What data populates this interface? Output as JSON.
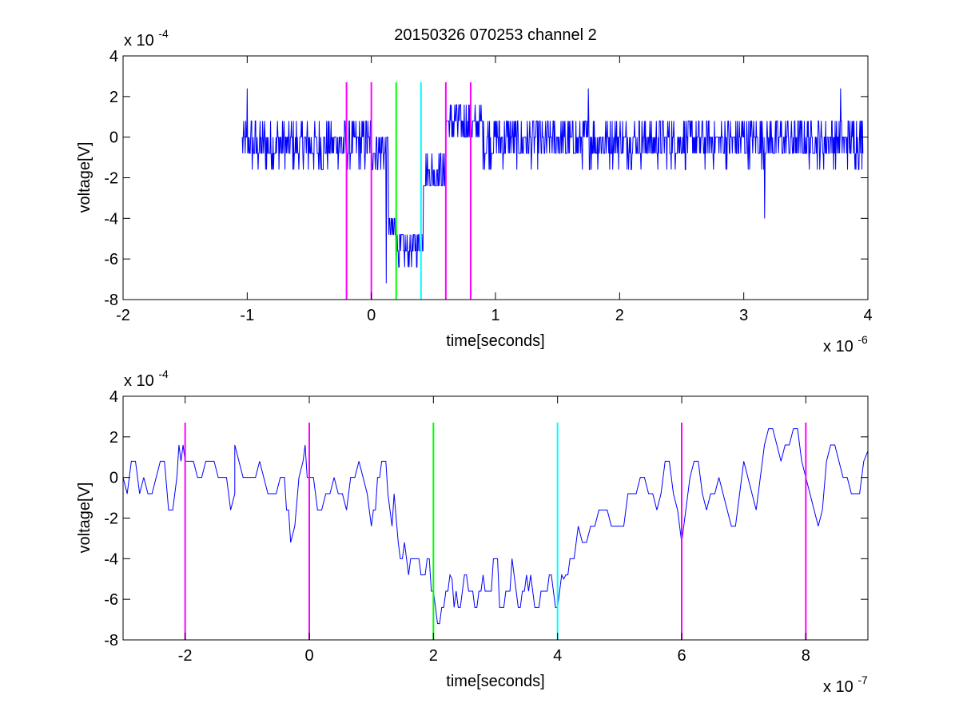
{
  "figure_title": "20150326 070253 channel 2",
  "colors": {
    "signal": "#0000ff",
    "magenta_marker": "#ff00ff",
    "green_marker": "#00ff00",
    "cyan_marker": "#00ffff",
    "axes": "#000000"
  },
  "chart_data": [
    {
      "type": "line",
      "title": "20150326 070253 channel 2",
      "xlabel": "time[seconds]",
      "ylabel": "voltage[V]",
      "x_multiplier_label": "x 10",
      "x_multiplier_exp": "-6",
      "y_multiplier_label": "x 10",
      "y_multiplier_exp": "-4",
      "x_scale": 1e-06,
      "y_scale": 0.0001,
      "xlim": [
        -2e-06,
        4e-06
      ],
      "ylim": [
        -0.0008,
        0.0004
      ],
      "x_ticks": [
        -2e-06,
        -1e-06,
        0,
        1e-06,
        2e-06,
        3e-06,
        4e-06
      ],
      "x_tick_labels": [
        "-2",
        "-1",
        "0",
        "1",
        "2",
        "3",
        "4"
      ],
      "y_ticks": [
        -0.0008,
        -0.0006,
        -0.0004,
        -0.0002,
        0,
        0.0002,
        0.0004
      ],
      "y_tick_labels": [
        "-8",
        "-6",
        "-4",
        "-2",
        "0",
        "2",
        "4"
      ],
      "grid": false,
      "markers": [
        {
          "x": -2e-07,
          "color": "magenta",
          "y_range": [
            -0.0008,
            0.00027
          ]
        },
        {
          "x": 0,
          "color": "magenta",
          "y_range": [
            -0.0008,
            0.00027
          ]
        },
        {
          "x": 2e-07,
          "color": "green",
          "y_range": [
            -0.0008,
            0.00027
          ]
        },
        {
          "x": 4e-07,
          "color": "cyan",
          "y_range": [
            -0.0008,
            0.00027
          ]
        },
        {
          "x": 6e-07,
          "color": "magenta",
          "y_range": [
            -0.0008,
            0.00027
          ]
        },
        {
          "x": 8e-07,
          "color": "magenta",
          "y_range": [
            -0.0008,
            0.00027
          ]
        }
      ],
      "series": [
        {
          "x_start": -1.04e-06,
          "x_end": 3.96e-06,
          "segments": [
            {
              "x0": -1.04e-06,
              "x1": -3e-07,
              "mean": -4e-05,
              "noise": 0.00012
            },
            {
              "x0": -3e-07,
              "x1": 0,
              "mean": -3e-05,
              "noise": 0.00012
            },
            {
              "x0": 0,
              "x1": 1.4e-07,
              "mean": -6e-05,
              "noise": 0.0001
            },
            {
              "x0": 1.4e-07,
              "x1": 2e-07,
              "mean": -0.00045,
              "noise": 6e-05
            },
            {
              "x0": 2e-07,
              "x1": 3.8e-07,
              "mean": -0.00055,
              "noise": 7e-05
            },
            {
              "x0": 3.8e-07,
              "x1": 4.2e-07,
              "mean": -0.0005,
              "noise": 7e-05
            },
            {
              "x0": 4.2e-07,
              "x1": 6e-07,
              "mean": -0.00018,
              "noise": 0.0001
            },
            {
              "x0": 6e-07,
              "x1": 9e-07,
              "mean": 6e-05,
              "noise": 0.0001
            },
            {
              "x0": 9e-07,
              "x1": 3.96e-06,
              "mean": -2e-05,
              "noise": 0.00011
            }
          ],
          "peaks": [
            {
              "x": 1.2e-07,
              "y": -0.00072
            },
            {
              "x": -1e-06,
              "y": 0.00024
            },
            {
              "x": 1.75e-06,
              "y": 0.00024
            },
            {
              "x": 3.17e-06,
              "y": -0.0004
            },
            {
              "x": 3.78e-06,
              "y": 0.00024
            }
          ]
        }
      ]
    },
    {
      "type": "line",
      "title": "",
      "xlabel": "time[seconds]",
      "ylabel": "voltage[V]",
      "x_multiplier_label": "x 10",
      "x_multiplier_exp": "-7",
      "y_multiplier_label": "x 10",
      "y_multiplier_exp": "-4",
      "x_scale": 1e-07,
      "y_scale": 0.0001,
      "xlim": [
        -3e-07,
        9e-07
      ],
      "ylim": [
        -0.0008,
        0.0004
      ],
      "x_ticks": [
        -2e-07,
        0,
        2e-07,
        4e-07,
        6e-07,
        8e-07
      ],
      "x_tick_labels": [
        "-2",
        "0",
        "2",
        "4",
        "6",
        "8"
      ],
      "y_ticks": [
        -0.0008,
        -0.0006,
        -0.0004,
        -0.0002,
        0,
        0.0002,
        0.0004
      ],
      "y_tick_labels": [
        "-8",
        "-6",
        "-4",
        "-2",
        "0",
        "2",
        "4"
      ],
      "grid": false,
      "markers": [
        {
          "x": -2e-07,
          "color": "magenta",
          "y_range": [
            -0.0008,
            0.00027
          ]
        },
        {
          "x": 0,
          "color": "magenta",
          "y_range": [
            -0.0008,
            0.00027
          ]
        },
        {
          "x": 2e-07,
          "color": "green",
          "y_range": [
            -0.0008,
            0.00027
          ]
        },
        {
          "x": 4e-07,
          "color": "cyan",
          "y_range": [
            -0.0008,
            0.00027
          ]
        },
        {
          "x": 6e-07,
          "color": "magenta",
          "y_range": [
            -0.0008,
            0.00027
          ]
        },
        {
          "x": 8e-07,
          "color": "magenta",
          "y_range": [
            -0.0008,
            0.00027
          ]
        }
      ],
      "series": [
        {
          "x_start": -3e-07,
          "x_end": 9e-07,
          "approx_points": [
            [
              -3e-07,
              0.0
            ],
            [
              -2.8e-07,
              8e-05
            ],
            [
              -2.6e-07,
              -8e-05
            ],
            [
              -2.4e-07,
              8e-05
            ],
            [
              -2.2e-07,
              -0.00016
            ],
            [
              -2.1e-07,
              0.00016
            ],
            [
              -2e-07,
              8e-05
            ],
            [
              -1.8e-07,
              0.0
            ],
            [
              -1.6e-07,
              8e-05
            ],
            [
              -1.4e-07,
              0.0
            ],
            [
              -1.2e-07,
              -8e-05
            ],
            [
              -1.2e-07,
              0.00016
            ],
            [
              -1e-07,
              0.0
            ],
            [
              -8e-08,
              8e-05
            ],
            [
              -6e-08,
              -8e-05
            ],
            [
              -4e-08,
              0.0
            ],
            [
              -3e-08,
              -0.00032
            ],
            [
              -1e-08,
              8e-05
            ],
            [
              0,
              0.0
            ],
            [
              2e-08,
              -0.00016
            ],
            [
              4e-08,
              0.0
            ],
            [
              6e-08,
              -0.00016
            ],
            [
              8e-08,
              8e-05
            ],
            [
              1e-07,
              -0.00024
            ],
            [
              1.1e-07,
              0.0
            ],
            [
              1.2e-07,
              8e-05
            ],
            [
              1.3e-07,
              -0.00016
            ],
            [
              1.4e-07,
              -0.0002
            ],
            [
              1.5e-07,
              -0.0004
            ],
            [
              1.6e-07,
              -0.00048
            ],
            [
              1.7e-07,
              -0.0004
            ],
            [
              1.8e-07,
              -0.00048
            ],
            [
              1.9e-07,
              -0.0004
            ],
            [
              2e-07,
              -0.00056
            ],
            [
              2.1e-07,
              -0.00072
            ],
            [
              2.2e-07,
              -0.00056
            ],
            [
              2.3e-07,
              -0.0005
            ],
            [
              2.4e-07,
              -0.00064
            ],
            [
              2.5e-07,
              -0.00048
            ],
            [
              2.6e-07,
              -0.00056
            ],
            [
              2.7e-07,
              -0.00064
            ],
            [
              2.8e-07,
              -0.00048
            ],
            [
              2.9e-07,
              -0.00056
            ],
            [
              3e-07,
              -0.0004
            ],
            [
              3.1e-07,
              -0.00064
            ],
            [
              3.2e-07,
              -0.00056
            ],
            [
              3.3e-07,
              -0.00048
            ],
            [
              3.4e-07,
              -0.00064
            ],
            [
              3.5e-07,
              -0.00048
            ],
            [
              3.6e-07,
              -0.00056
            ],
            [
              3.7e-07,
              -0.00064
            ],
            [
              3.8e-07,
              -0.00056
            ],
            [
              3.9e-07,
              -0.00048
            ],
            [
              4e-07,
              -0.00064
            ],
            [
              4.1e-07,
              -0.0005
            ],
            [
              4.2e-07,
              -0.0004
            ],
            [
              4.4e-07,
              -0.00032
            ],
            [
              4.6e-07,
              -0.00024
            ],
            [
              4.8e-07,
              -0.00016
            ],
            [
              5e-07,
              -0.00024
            ],
            [
              5.2e-07,
              -8e-05
            ],
            [
              5.4e-07,
              0.0
            ],
            [
              5.6e-07,
              -0.00016
            ],
            [
              5.8e-07,
              8e-05
            ],
            [
              6e-07,
              -0.00032
            ],
            [
              6.2e-07,
              8e-05
            ],
            [
              6.4e-07,
              -0.00016
            ],
            [
              6.6e-07,
              0.0
            ],
            [
              6.8e-07,
              -0.00024
            ],
            [
              7e-07,
              8e-05
            ],
            [
              7.2e-07,
              -0.00016
            ],
            [
              7.4e-07,
              0.00024
            ],
            [
              7.6e-07,
              8e-05
            ],
            [
              7.8e-07,
              0.00024
            ],
            [
              8e-07,
              0.0
            ],
            [
              8.2e-07,
              -0.00024
            ],
            [
              8.4e-07,
              0.00016
            ],
            [
              8.6e-07,
              0.0
            ],
            [
              8.8e-07,
              -8e-05
            ],
            [
              9e-07,
              0.00013
            ]
          ]
        }
      ]
    }
  ]
}
